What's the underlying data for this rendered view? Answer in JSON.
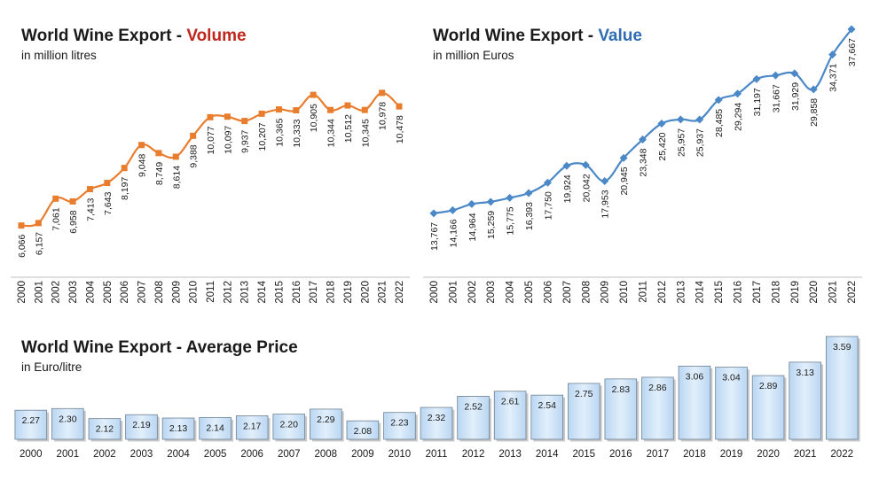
{
  "colors": {
    "volume": "#e97d2e",
    "value": "#4a88c7",
    "volume_title": "#c0261b",
    "value_title": "#2f6db0",
    "bar_fill": "#cfe3f7",
    "bar_stroke": "#7f8fa0"
  },
  "panels": {
    "volume": {
      "title_prefix": "World Wine Export - ",
      "title_highlight": "Volume",
      "subtitle": "in million litres"
    },
    "value": {
      "title_prefix": "World Wine Export - ",
      "title_highlight": "Value",
      "subtitle": "in million Euros"
    },
    "price": {
      "title": "World Wine Export - Average Price",
      "subtitle": "in Euro/litre"
    }
  },
  "chart_data": [
    {
      "type": "line",
      "title": "World Wine Export - Volume",
      "subtitle": "in million litres",
      "x": [
        "2000",
        "2001",
        "2002",
        "2003",
        "2004",
        "2005",
        "2006",
        "2007",
        "2008",
        "2009",
        "2010",
        "2011",
        "2012",
        "2013",
        "2014",
        "2015",
        "2016",
        "2017",
        "2018",
        "2019",
        "2020",
        "2021",
        "2022"
      ],
      "series": [
        {
          "values": [
            6066,
            6157,
            7061,
            6958,
            7413,
            7643,
            8197,
            9048,
            8749,
            8614,
            9388,
            10077,
            10097,
            9937,
            10207,
            10365,
            10333,
            10905,
            10344,
            10512,
            10345,
            10978,
            10478
          ]
        }
      ],
      "labels": [
        "6,066",
        "6,157",
        "7,061",
        "6,958",
        "7,413",
        "7,643",
        "8,197",
        "9,048",
        "8,749",
        "8,614",
        "9,388",
        "10,077",
        "10,097",
        "9,937",
        "10,207",
        "10,365",
        "10,333",
        "10,905",
        "10,344",
        "10,512",
        "10,345",
        "10,978",
        "10,478"
      ],
      "marker": "square",
      "ylim": [
        5300,
        11400
      ]
    },
    {
      "type": "line",
      "title": "World Wine Export - Value",
      "subtitle": "in million Euros",
      "x": [
        "2000",
        "2001",
        "2002",
        "2003",
        "2004",
        "2005",
        "2006",
        "2007",
        "2008",
        "2009",
        "2010",
        "2011",
        "2012",
        "2013",
        "2014",
        "2015",
        "2016",
        "2017",
        "2018",
        "2019",
        "2020",
        "2021",
        "2022"
      ],
      "series": [
        {
          "values": [
            13767,
            14166,
            14964,
            15259,
            15775,
            16393,
            17750,
            19924,
            20042,
            17953,
            20945,
            23348,
            25420,
            25957,
            25937,
            28485,
            29294,
            31197,
            31667,
            31929,
            29858,
            34371,
            37667
          ]
        }
      ],
      "labels": [
        "13,767",
        "14,166",
        "14,964",
        "15,259",
        "15,775",
        "16,393",
        "17,750",
        "19,924",
        "20,042",
        "17,953",
        "20,945",
        "23,348",
        "25,420",
        "25,957",
        "25,937",
        "28,485",
        "29,294",
        "31,197",
        "31,667",
        "31,929",
        "29,858",
        "34,371",
        "37,667"
      ],
      "marker": "diamond",
      "ylim": [
        8000,
        38700
      ]
    },
    {
      "type": "bar",
      "title": "World Wine Export - Average Price",
      "subtitle": "in Euro/litre",
      "categories": [
        "2000",
        "2001",
        "2002",
        "2003",
        "2004",
        "2005",
        "2006",
        "2007",
        "2008",
        "2009",
        "2010",
        "2011",
        "2012",
        "2013",
        "2014",
        "2015",
        "2016",
        "2017",
        "2018",
        "2019",
        "2020",
        "2021",
        "2022"
      ],
      "values": [
        2.27,
        2.3,
        2.12,
        2.19,
        2.13,
        2.14,
        2.17,
        2.2,
        2.29,
        2.08,
        2.23,
        2.32,
        2.52,
        2.61,
        2.54,
        2.75,
        2.83,
        2.86,
        3.06,
        3.04,
        2.89,
        3.13,
        3.59
      ],
      "labels": [
        "2.27",
        "2.30",
        "2.12",
        "2.19",
        "2.13",
        "2.14",
        "2.17",
        "2.20",
        "2.29",
        "2.08",
        "2.23",
        "2.32",
        "2.52",
        "2.61",
        "2.54",
        "2.75",
        "2.83",
        "2.86",
        "3.06",
        "3.04",
        "2.89",
        "3.13",
        "3.59"
      ],
      "ylim": [
        1.75,
        3.62
      ]
    }
  ]
}
